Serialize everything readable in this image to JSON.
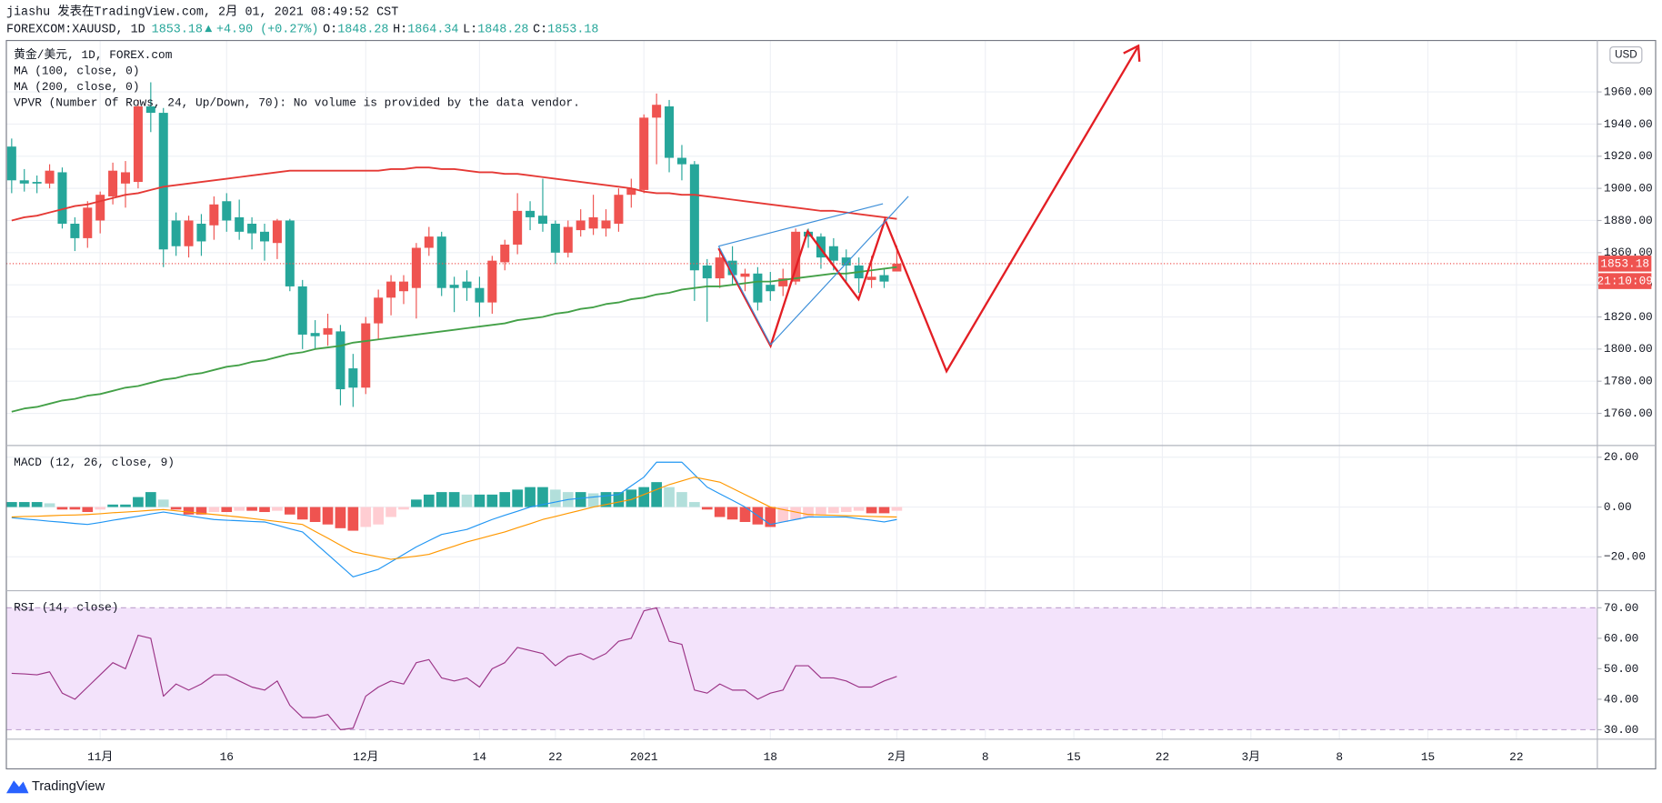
{
  "header": {
    "author_line": "jiashu 发表在TradingView.com, 2月 01, 2021 08:49:52 CST",
    "symbol": "FOREXCOM:XAUUSD, 1D",
    "price": 1853.18,
    "arrow": "▲",
    "change": "+4.90 (+0.27%)",
    "ohlc": [
      {
        "label": "O:",
        "value": 1848.28
      },
      {
        "label": "H:",
        "value": 1864.34
      },
      {
        "label": "L:",
        "value": 1848.28
      },
      {
        "label": "C:",
        "value": 1853.18
      }
    ]
  },
  "footer": {
    "brand": "TradingView"
  },
  "chart_data": [
    {
      "type": "candlestick",
      "title": "黄金/美元, 1D, FOREX.com",
      "note": "VPVR (Number Of Rows, 24, Up/Down, 70): No volume is provided by the data vendor.",
      "currency": "USD",
      "countdown": "21:10:09",
      "up_color": "#ef5350",
      "down_color": "#26a69a",
      "open": [
        1926,
        1905,
        1904,
        1903,
        1910,
        1878,
        1869,
        1880,
        1895,
        1903,
        1904,
        1951,
        1947,
        1880,
        1864,
        1878,
        1877,
        1892,
        1882,
        1878,
        1873,
        1866,
        1880,
        1839,
        1810,
        1809,
        1811,
        1788,
        1776,
        1816,
        1832,
        1836,
        1838,
        1863,
        1870,
        1840,
        1842,
        1838,
        1829,
        1854,
        1865,
        1886,
        1883,
        1878,
        1860,
        1874,
        1875,
        1875,
        1878,
        1896,
        1899,
        1944,
        1951,
        1919,
        1915,
        1852,
        1844,
        1855,
        1845,
        1847,
        1840,
        1839,
        1842,
        1873,
        1870,
        1864,
        1857,
        1852,
        1843,
        1846,
        1848.28
      ],
      "high": [
        1931,
        1912,
        1908,
        1915,
        1913,
        1882,
        1892,
        1898,
        1916,
        1917,
        1955,
        1966,
        1950,
        1885,
        1883,
        1884,
        1895,
        1897,
        1893,
        1882,
        1878,
        1881,
        1881,
        1843,
        1818,
        1822,
        1815,
        1797,
        1820,
        1837,
        1846,
        1846,
        1866,
        1876,
        1873,
        1845,
        1849,
        1845,
        1858,
        1868,
        1897,
        1892,
        1906,
        1880,
        1880,
        1887,
        1896,
        1887,
        1900,
        1906,
        1946,
        1959,
        1955,
        1927,
        1917,
        1856,
        1862,
        1864,
        1850,
        1851,
        1848,
        1850,
        1875,
        1875,
        1872,
        1869,
        1862,
        1857,
        1858,
        1850,
        1864.34
      ],
      "low": [
        1897,
        1898,
        1897,
        1900,
        1875,
        1861,
        1863,
        1872,
        1890,
        1888,
        1900,
        1935,
        1851,
        1858,
        1857,
        1858,
        1868,
        1873,
        1868,
        1862,
        1855,
        1856,
        1836,
        1800,
        1800,
        1802,
        1765,
        1764,
        1772,
        1806,
        1821,
        1828,
        1819,
        1858,
        1833,
        1823,
        1830,
        1820,
        1822,
        1849,
        1859,
        1874,
        1873,
        1853,
        1857,
        1870,
        1871,
        1870,
        1873,
        1888,
        1897,
        1915,
        1910,
        1905,
        1830,
        1817,
        1838,
        1840,
        1836,
        1824,
        1830,
        1833,
        1840,
        1863,
        1850,
        1849,
        1841,
        1835,
        1838,
        1838,
        1848.28
      ],
      "close": [
        1905,
        1903,
        1903,
        1911,
        1878,
        1869,
        1888,
        1896,
        1911,
        1910,
        1951,
        1947,
        1862,
        1864,
        1880,
        1867,
        1890,
        1880,
        1873,
        1872,
        1867,
        1880,
        1839,
        1809,
        1808,
        1813,
        1775,
        1776,
        1816,
        1832,
        1842,
        1842,
        1863,
        1870,
        1838,
        1838,
        1838,
        1829,
        1855,
        1865,
        1886,
        1882,
        1878,
        1860,
        1876,
        1880,
        1882,
        1880,
        1896,
        1900,
        1944,
        1952,
        1919,
        1915,
        1849,
        1844,
        1857,
        1846,
        1847,
        1829,
        1836,
        1844,
        1873,
        1870,
        1857,
        1855,
        1852,
        1844,
        1845,
        1842,
        1853.18
      ],
      "series": [
        {
          "name": "MA (100, close, 0)",
          "color": "#e53935",
          "values": [
            1880,
            1882,
            1883,
            1885,
            1887,
            1889,
            1890,
            1892,
            1894,
            1896,
            1897,
            1899,
            1901,
            1902,
            1903,
            1904,
            1905,
            1906,
            1907,
            1908,
            1909,
            1910,
            1911,
            1911,
            1911,
            1911,
            1911,
            1911,
            1911,
            1911,
            1912,
            1912,
            1913,
            1913,
            1912,
            1912,
            1911,
            1910,
            1910,
            1909,
            1909,
            1908,
            1907,
            1906,
            1905,
            1904,
            1903,
            1902,
            1901,
            1900,
            1898,
            1897,
            1897,
            1896,
            1896,
            1895,
            1894,
            1893,
            1892,
            1891,
            1890,
            1889,
            1888,
            1887,
            1886,
            1886,
            1885,
            1884,
            1883,
            1882,
            1881
          ]
        },
        {
          "name": "MA (200, close, 0)",
          "color": "#43a047",
          "values": [
            1761,
            1763,
            1764,
            1766,
            1768,
            1769,
            1771,
            1772,
            1774,
            1776,
            1777,
            1779,
            1781,
            1782,
            1784,
            1785,
            1787,
            1789,
            1790,
            1792,
            1793,
            1795,
            1797,
            1798,
            1800,
            1801,
            1802,
            1804,
            1805,
            1806,
            1807,
            1808,
            1809,
            1810,
            1811,
            1812,
            1813,
            1814,
            1815,
            1816,
            1818,
            1819,
            1820,
            1822,
            1823,
            1825,
            1826,
            1828,
            1829,
            1831,
            1832,
            1834,
            1835,
            1837,
            1838,
            1839,
            1839,
            1840,
            1841,
            1842,
            1842,
            1843,
            1844,
            1845,
            1846,
            1847,
            1847,
            1848,
            1849,
            1850,
            1851
          ]
        }
      ],
      "xlim": [
        -0.42,
        125.4
      ],
      "xticks": [
        {
          "value": 7,
          "label": "11月"
        },
        {
          "value": 17,
          "label": "16"
        },
        {
          "value": 28,
          "label": "12月"
        },
        {
          "value": 37,
          "label": "14"
        },
        {
          "value": 43,
          "label": "22"
        },
        {
          "value": 50,
          "label": "2021"
        },
        {
          "value": 60,
          "label": "18"
        },
        {
          "value": 70,
          "label": "2月"
        },
        {
          "value": 77,
          "label": "8"
        },
        {
          "value": 84,
          "label": "15"
        },
        {
          "value": 91,
          "label": "22"
        },
        {
          "value": 98,
          "label": "3月"
        },
        {
          "value": 105,
          "label": "8"
        },
        {
          "value": 112,
          "label": "15"
        },
        {
          "value": 119,
          "label": "22"
        }
      ],
      "ylim": [
        1740,
        1992
      ],
      "yticks": [
        {
          "value": 1760,
          "label": "1760.00"
        },
        {
          "value": 1780,
          "label": "1780.00"
        },
        {
          "value": 1800,
          "label": "1800.00"
        },
        {
          "value": 1820,
          "label": "1820.00"
        },
        {
          "value": 1840,
          "label": "1840.00"
        },
        {
          "value": 1860,
          "label": "1860.00"
        },
        {
          "value": 1880,
          "label": "1880.00"
        },
        {
          "value": 1900,
          "label": "1900.00"
        },
        {
          "value": 1920,
          "label": "1920.00"
        },
        {
          "value": 1940,
          "label": "1940.00"
        },
        {
          "value": 1960,
          "label": "1960.00"
        }
      ],
      "grid": true
    },
    {
      "type": "macd",
      "title": "MACD (12, 26, close, 9)",
      "histogram": [
        2,
        2,
        2,
        1.5,
        -1,
        -1,
        -2,
        -1,
        1,
        1,
        4,
        6,
        3,
        -1,
        -3,
        -3,
        -2,
        -2,
        -1.5,
        -1.5,
        -2,
        -1.5,
        -3,
        -5,
        -6,
        -7,
        -8.5,
        -9.5,
        -8,
        -7,
        -4,
        -1,
        3,
        5,
        6,
        6,
        5,
        5,
        5,
        6,
        7,
        8,
        8,
        7,
        6,
        6,
        5.5,
        6,
        6,
        7,
        8,
        10,
        8,
        6,
        2,
        -1,
        -4,
        -5,
        -6,
        -7,
        -8,
        -6,
        -5,
        -4,
        -3,
        -2.5,
        -2,
        -1.5,
        -2.5,
        -2.5,
        -1.5
      ],
      "histogram_colors": [
        "#26a69a",
        "#b2dfdb",
        "#ef5350",
        "#ffcdd2"
      ],
      "series": [
        {
          "color": "#2196f3",
          "values": [
            -4.3,
            -4.8,
            -5.2,
            -5.7,
            -6.1,
            -6.6,
            -7,
            -6.2,
            -5.3,
            -4.5,
            -3.7,
            -2.8,
            -2,
            -2.8,
            -3.5,
            -4.3,
            -5,
            -5.3,
            -5.5,
            -5.8,
            -6,
            -7.3,
            -8.7,
            -10,
            -14.5,
            -19,
            -23.5,
            -28,
            -26.5,
            -25,
            -22,
            -19,
            -16,
            -13.5,
            -11,
            -10,
            -9,
            -7,
            -5,
            -3.3,
            -1.7,
            0,
            1,
            2,
            3,
            3.5,
            4,
            4.5,
            5,
            8.5,
            12,
            18,
            18,
            18,
            13,
            8,
            5.3,
            2.7,
            0,
            -3.5,
            -7,
            -6,
            -5,
            -4,
            -4,
            -4,
            -4,
            -4.7,
            -5.3,
            -6,
            -5
          ]
        },
        {
          "color": "#ff9800",
          "values": [
            -4,
            -3.8,
            -3.7,
            -3.5,
            -3.3,
            -3.2,
            -3,
            -2.7,
            -2.3,
            -2,
            -1.7,
            -1.3,
            -1,
            -1.5,
            -2,
            -2.5,
            -3,
            -3.5,
            -4,
            -4.6,
            -5.2,
            -5.8,
            -6.4,
            -7,
            -9.8,
            -12.5,
            -15.3,
            -18,
            -19,
            -20,
            -21,
            -20.3,
            -19.7,
            -19,
            -17.3,
            -15.7,
            -14,
            -12.7,
            -11.3,
            -10,
            -8.3,
            -6.7,
            -5,
            -3.8,
            -2.5,
            -1.3,
            0,
            1,
            2,
            3,
            5,
            7,
            9,
            10.5,
            12,
            11,
            10,
            7.5,
            5,
            2.5,
            0,
            -1,
            -2,
            -3,
            -3.2,
            -3.3,
            -3.5,
            -3.6,
            -3.8,
            -3.9,
            -4
          ]
        }
      ],
      "ylim": [
        -33.6,
        24.7
      ],
      "yticks": [
        {
          "value": -20,
          "label": "−20.00"
        },
        {
          "value": 0,
          "label": "0.00"
        },
        {
          "value": 20,
          "label": "20.00"
        }
      ],
      "grid": true
    },
    {
      "type": "rsi",
      "title": "RSI (14, close)",
      "color": "#9c3587",
      "band": [
        30,
        70
      ],
      "band_color": "#f3e3fb",
      "values": [
        48.5,
        48.3,
        48,
        49,
        42,
        40,
        44,
        48,
        52,
        50,
        61,
        60,
        41,
        45,
        43,
        45,
        48,
        48,
        46,
        44,
        43,
        46,
        38,
        34,
        34,
        35,
        30,
        30.5,
        41,
        44,
        46,
        45,
        52,
        53,
        47,
        46,
        47,
        44,
        50,
        52,
        57,
        56,
        55,
        51,
        54,
        55,
        53,
        55,
        59,
        60,
        69,
        70,
        59,
        58,
        43,
        42,
        45,
        43,
        43,
        40,
        42,
        43,
        51,
        51,
        47,
        47,
        46,
        44,
        44,
        46,
        47.5
      ],
      "ylim": [
        26.9,
        75.6
      ],
      "yticks": [
        {
          "value": 30,
          "label": "30.00"
        },
        {
          "value": 40,
          "label": "40.00"
        },
        {
          "value": 50,
          "label": "50.00"
        },
        {
          "value": 60,
          "label": "60.00"
        },
        {
          "value": 70,
          "label": "70.00"
        }
      ],
      "grid": true
    }
  ]
}
